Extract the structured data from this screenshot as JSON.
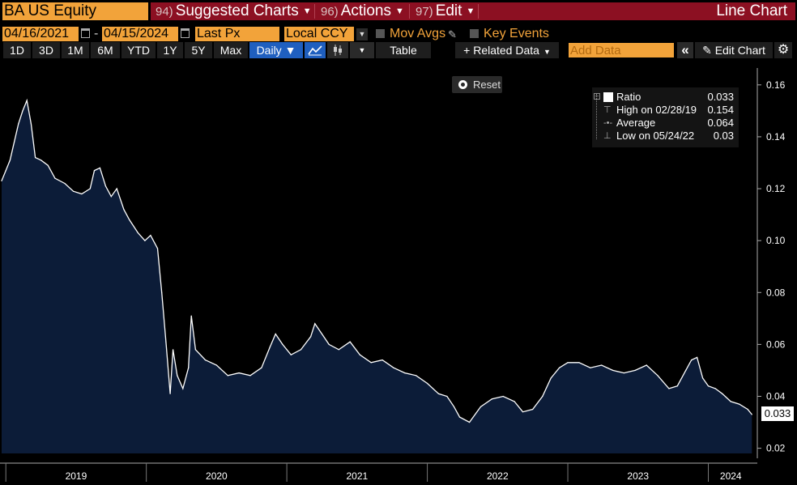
{
  "header": {
    "security": "BA US Equity",
    "menus": [
      {
        "num": "94)",
        "label": "Suggested Charts"
      },
      {
        "num": "96)",
        "label": "Actions"
      },
      {
        "num": "97)",
        "label": "Edit"
      }
    ],
    "chart_type_title": "Line Chart"
  },
  "settings": {
    "start_date": "04/16/2021",
    "date_separator": "-",
    "end_date": "04/15/2024",
    "field": "Last Px",
    "currency": "Local CCY",
    "mov_avgs_label": "Mov Avgs",
    "key_events_label": "Key Events"
  },
  "toolbar": {
    "periods": [
      "1D",
      "3D",
      "1M",
      "6M",
      "YTD",
      "1Y",
      "5Y",
      "Max"
    ],
    "frequency": "Daily ▼",
    "table_label": "Table",
    "related_data_label": "+ Related Data",
    "add_data_placeholder": "Add Data",
    "collapse_icon": "«",
    "edit_chart_label": "Edit Chart",
    "colors": {
      "accent_orange": "#f2a33a",
      "active_blue": "#1f5fbf",
      "menu_red": "#8c1022"
    }
  },
  "reset_label": "Reset",
  "legend": {
    "ratio_label": "Ratio",
    "ratio_value": "0.033",
    "high_label": "High on 02/28/19",
    "high_value": "0.154",
    "avg_label": "Average",
    "avg_value": "0.064",
    "low_label": "Low on 05/24/22",
    "low_value": "0.03"
  },
  "last_value_tag": "0.033",
  "chart_data": {
    "type": "area",
    "series": [
      {
        "name": "Ratio"
      }
    ],
    "x_tick_labels": [
      "2019",
      "2020",
      "2021",
      "2022",
      "2023",
      "2024"
    ],
    "y_tick_labels": [
      "0.16",
      "0.14",
      "0.12",
      "0.10",
      "0.08",
      "0.06",
      "0.04",
      "0.02"
    ],
    "ylim": [
      0.018,
      0.164
    ],
    "xlim": [
      2018.97,
      2024.32
    ],
    "line_color": "#ffffff",
    "fill_color": "#0c1c38",
    "points": [
      [
        2018.97,
        0.123
      ],
      [
        2019.0,
        0.127
      ],
      [
        2019.03,
        0.131
      ],
      [
        2019.06,
        0.138
      ],
      [
        2019.09,
        0.145
      ],
      [
        2019.12,
        0.15
      ],
      [
        2019.15,
        0.154
      ],
      [
        2019.18,
        0.145
      ],
      [
        2019.21,
        0.132
      ],
      [
        2019.25,
        0.131
      ],
      [
        2019.3,
        0.129
      ],
      [
        2019.35,
        0.124
      ],
      [
        2019.42,
        0.122
      ],
      [
        2019.48,
        0.119
      ],
      [
        2019.54,
        0.118
      ],
      [
        2019.6,
        0.12
      ],
      [
        2019.63,
        0.127
      ],
      [
        2019.67,
        0.128
      ],
      [
        2019.71,
        0.121
      ],
      [
        2019.75,
        0.117
      ],
      [
        2019.79,
        0.12
      ],
      [
        2019.84,
        0.112
      ],
      [
        2019.88,
        0.108
      ],
      [
        2019.94,
        0.103
      ],
      [
        2019.99,
        0.1
      ],
      [
        2020.03,
        0.102
      ],
      [
        2020.08,
        0.097
      ],
      [
        2020.11,
        0.08
      ],
      [
        2020.14,
        0.061
      ],
      [
        2020.17,
        0.041
      ],
      [
        2020.19,
        0.058
      ],
      [
        2020.22,
        0.048
      ],
      [
        2020.26,
        0.043
      ],
      [
        2020.3,
        0.051
      ],
      [
        2020.32,
        0.071
      ],
      [
        2020.35,
        0.058
      ],
      [
        2020.42,
        0.054
      ],
      [
        2020.5,
        0.052
      ],
      [
        2020.58,
        0.048
      ],
      [
        2020.66,
        0.049
      ],
      [
        2020.74,
        0.048
      ],
      [
        2020.82,
        0.051
      ],
      [
        2020.88,
        0.059
      ],
      [
        2020.92,
        0.064
      ],
      [
        2020.97,
        0.06
      ],
      [
        2021.03,
        0.056
      ],
      [
        2021.1,
        0.058
      ],
      [
        2021.17,
        0.063
      ],
      [
        2021.2,
        0.068
      ],
      [
        2021.25,
        0.064
      ],
      [
        2021.3,
        0.06
      ],
      [
        2021.37,
        0.058
      ],
      [
        2021.45,
        0.061
      ],
      [
        2021.52,
        0.056
      ],
      [
        2021.6,
        0.053
      ],
      [
        2021.68,
        0.054
      ],
      [
        2021.76,
        0.051
      ],
      [
        2021.84,
        0.049
      ],
      [
        2021.92,
        0.048
      ],
      [
        2022.0,
        0.045
      ],
      [
        2022.08,
        0.041
      ],
      [
        2022.14,
        0.04
      ],
      [
        2022.19,
        0.036
      ],
      [
        2022.23,
        0.032
      ],
      [
        2022.3,
        0.03
      ],
      [
        2022.38,
        0.036
      ],
      [
        2022.46,
        0.039
      ],
      [
        2022.54,
        0.04
      ],
      [
        2022.62,
        0.038
      ],
      [
        2022.68,
        0.034
      ],
      [
        2022.75,
        0.035
      ],
      [
        2022.82,
        0.04
      ],
      [
        2022.88,
        0.047
      ],
      [
        2022.94,
        0.051
      ],
      [
        2023.0,
        0.053
      ],
      [
        2023.08,
        0.053
      ],
      [
        2023.16,
        0.051
      ],
      [
        2023.24,
        0.052
      ],
      [
        2023.32,
        0.05
      ],
      [
        2023.4,
        0.049
      ],
      [
        2023.48,
        0.05
      ],
      [
        2023.56,
        0.052
      ],
      [
        2023.64,
        0.048
      ],
      [
        2023.72,
        0.043
      ],
      [
        2023.78,
        0.044
      ],
      [
        2023.84,
        0.05
      ],
      [
        2023.88,
        0.054
      ],
      [
        2023.92,
        0.055
      ],
      [
        2023.96,
        0.047
      ],
      [
        2024.0,
        0.044
      ],
      [
        2024.05,
        0.043
      ],
      [
        2024.1,
        0.041
      ],
      [
        2024.16,
        0.038
      ],
      [
        2024.22,
        0.037
      ],
      [
        2024.28,
        0.035
      ],
      [
        2024.31,
        0.033
      ]
    ]
  }
}
